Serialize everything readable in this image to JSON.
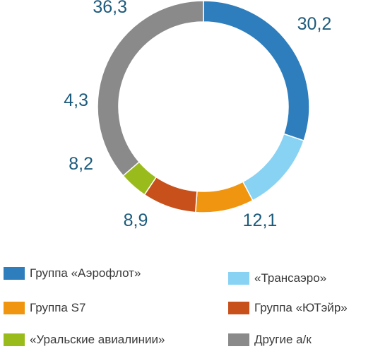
{
  "chart_data": {
    "type": "pie",
    "variant": "donut",
    "title": "",
    "categories": [
      "Группа «Аэрофлот»",
      "«Трансаэро»",
      "Группа S7",
      "Группа «ЮТэйр»",
      "«Уральские авиалинии»",
      "Другие а/к"
    ],
    "values": [
      30.2,
      12.1,
      8.9,
      8.2,
      4.3,
      36.3
    ],
    "value_labels": [
      "30,2",
      "12,1",
      "8,9",
      "8,2",
      "4,3",
      "36,3"
    ],
    "colors": [
      "#2e7ebd",
      "#88d2f4",
      "#f0950f",
      "#c8501a",
      "#99bc1c",
      "#8a8a8a"
    ],
    "legend_position": "bottom"
  }
}
